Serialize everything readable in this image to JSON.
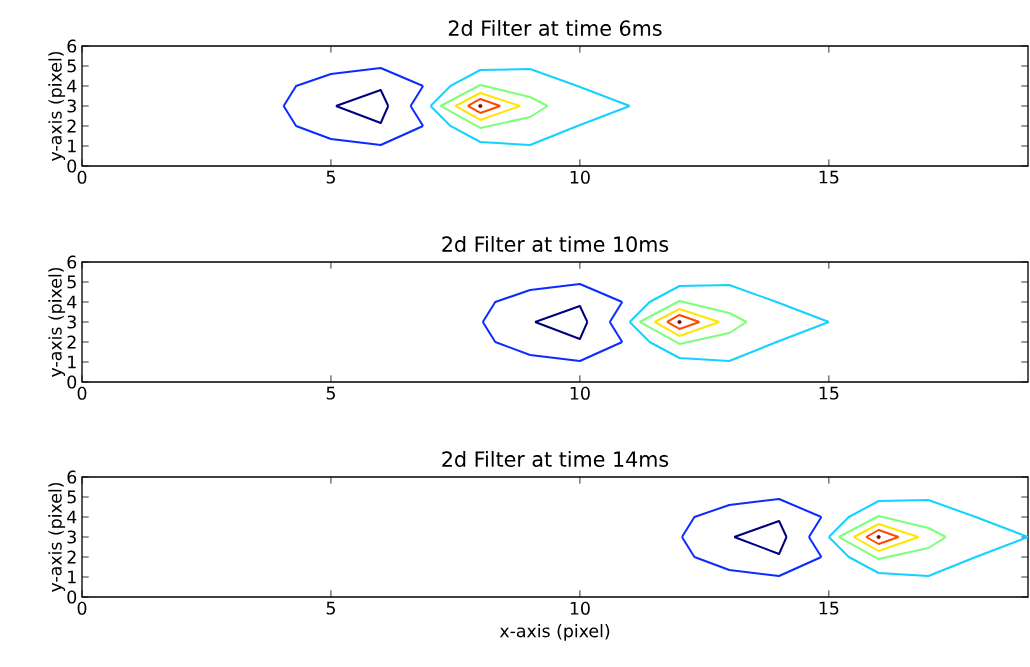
{
  "chart_data": [
    {
      "type": "line",
      "title": "2d Filter at time 6ms",
      "ylabel": "y-axis (pixel)",
      "xlim": [
        0,
        19
      ],
      "ylim": [
        0,
        6
      ],
      "xticks": [
        0,
        5,
        10,
        15
      ],
      "yticks": [
        0,
        1,
        2,
        3,
        4,
        5,
        6
      ],
      "series": [
        {
          "color": "#0c2cff",
          "x": [
            4.05,
            4.3,
            5,
            6,
            6.85
          ],
          "values": [
            3,
            4,
            4.6,
            4.9,
            4
          ]
        },
        {
          "color": "#0c2cff",
          "x": [
            4.05,
            4.3,
            5,
            6,
            6.85
          ],
          "values": [
            3,
            2,
            1.35,
            1.05,
            2
          ]
        },
        {
          "color": "#0c2cff",
          "x": [
            6.6,
            6.85
          ],
          "values": [
            3,
            4
          ]
        },
        {
          "color": "#0c2cff",
          "x": [
            6.6,
            6.85
          ],
          "values": [
            3,
            2
          ]
        },
        {
          "color": "#00007f",
          "x": [
            5.1,
            6,
            6.15
          ],
          "values": [
            3,
            3.8,
            3
          ]
        },
        {
          "color": "#00007f",
          "x": [
            5.1,
            6,
            6.15
          ],
          "values": [
            3,
            2.15,
            3
          ]
        },
        {
          "color": "#14d2ff",
          "x": [
            7,
            7.4,
            8,
            9,
            9.95,
            11
          ],
          "values": [
            3,
            4,
            4.8,
            4.85,
            4,
            3
          ]
        },
        {
          "color": "#14d2ff",
          "x": [
            7,
            7.4,
            8,
            9,
            9.95,
            11
          ],
          "values": [
            3,
            2,
            1.2,
            1.05,
            2,
            3
          ]
        },
        {
          "color": "#7cff79",
          "x": [
            7.2,
            8,
            9,
            9.35
          ],
          "values": [
            3,
            4.05,
            3.45,
            3
          ]
        },
        {
          "color": "#7cff79",
          "x": [
            7.2,
            8,
            9,
            9.35
          ],
          "values": [
            3,
            1.9,
            2.45,
            3
          ]
        },
        {
          "color": "#ffe500",
          "x": [
            7.5,
            8,
            8.8
          ],
          "values": [
            3,
            3.65,
            3
          ]
        },
        {
          "color": "#ffe500",
          "x": [
            7.5,
            8,
            8.8
          ],
          "values": [
            3,
            2.3,
            3
          ]
        },
        {
          "color": "#ff4a00",
          "x": [
            7.75,
            8,
            8.4
          ],
          "values": [
            3,
            3.35,
            3
          ]
        },
        {
          "color": "#ff4a00",
          "x": [
            7.75,
            8,
            8.4
          ],
          "values": [
            3,
            2.65,
            3
          ]
        },
        {
          "type": "scatter",
          "marker": "circle",
          "color": "#7f0000",
          "x": [
            8
          ],
          "values": [
            3
          ]
        }
      ]
    },
    {
      "type": "line",
      "title": "2d Filter at time 10ms",
      "ylabel": "y-axis (pixel)",
      "xlim": [
        0,
        19
      ],
      "ylim": [
        0,
        6
      ],
      "xticks": [
        0,
        5,
        10,
        15
      ],
      "yticks": [
        0,
        1,
        2,
        3,
        4,
        5,
        6
      ],
      "series": [
        {
          "color": "#0c2cff",
          "x": [
            8.05,
            8.3,
            9,
            10,
            10.85
          ],
          "values": [
            3,
            4,
            4.6,
            4.9,
            4
          ]
        },
        {
          "color": "#0c2cff",
          "x": [
            8.05,
            8.3,
            9,
            10,
            10.85
          ],
          "values": [
            3,
            2,
            1.35,
            1.05,
            2
          ]
        },
        {
          "color": "#0c2cff",
          "x": [
            10.6,
            10.85
          ],
          "values": [
            3,
            4
          ]
        },
        {
          "color": "#0c2cff",
          "x": [
            10.6,
            10.85
          ],
          "values": [
            3,
            2
          ]
        },
        {
          "color": "#00007f",
          "x": [
            9.1,
            10,
            10.15
          ],
          "values": [
            3,
            3.8,
            3
          ]
        },
        {
          "color": "#00007f",
          "x": [
            9.1,
            10,
            10.15
          ],
          "values": [
            3,
            2.15,
            3
          ]
        },
        {
          "color": "#14d2ff",
          "x": [
            11,
            11.4,
            12,
            13,
            13.95,
            15
          ],
          "values": [
            3,
            4,
            4.8,
            4.85,
            4,
            3
          ]
        },
        {
          "color": "#14d2ff",
          "x": [
            11,
            11.4,
            12,
            13,
            13.95,
            15
          ],
          "values": [
            3,
            2,
            1.2,
            1.05,
            2,
            3
          ]
        },
        {
          "color": "#7cff79",
          "x": [
            11.2,
            12,
            13,
            13.35
          ],
          "values": [
            3,
            4.05,
            3.45,
            3
          ]
        },
        {
          "color": "#7cff79",
          "x": [
            11.2,
            12,
            13,
            13.35
          ],
          "values": [
            3,
            1.9,
            2.45,
            3
          ]
        },
        {
          "color": "#ffe500",
          "x": [
            11.5,
            12,
            12.8
          ],
          "values": [
            3,
            3.65,
            3
          ]
        },
        {
          "color": "#ffe500",
          "x": [
            11.5,
            12,
            12.8
          ],
          "values": [
            3,
            2.3,
            3
          ]
        },
        {
          "color": "#ff4a00",
          "x": [
            11.75,
            12,
            12.4
          ],
          "values": [
            3,
            3.35,
            3
          ]
        },
        {
          "color": "#ff4a00",
          "x": [
            11.75,
            12,
            12.4
          ],
          "values": [
            3,
            2.65,
            3
          ]
        },
        {
          "type": "scatter",
          "marker": "circle",
          "color": "#7f0000",
          "x": [
            12
          ],
          "values": [
            3
          ]
        }
      ]
    },
    {
      "type": "line",
      "title": "2d Filter at time 14ms",
      "xlabel": "x-axis (pixel)",
      "ylabel": "y-axis (pixel)",
      "xlim": [
        0,
        19
      ],
      "ylim": [
        0,
        6
      ],
      "xticks": [
        0,
        5,
        10,
        15
      ],
      "yticks": [
        0,
        1,
        2,
        3,
        4,
        5,
        6
      ],
      "series": [
        {
          "color": "#0c2cff",
          "x": [
            12.05,
            12.3,
            13,
            14,
            14.85
          ],
          "values": [
            3,
            4,
            4.6,
            4.9,
            4
          ]
        },
        {
          "color": "#0c2cff",
          "x": [
            12.05,
            12.3,
            13,
            14,
            14.85
          ],
          "values": [
            3,
            2,
            1.35,
            1.05,
            2
          ]
        },
        {
          "color": "#0c2cff",
          "x": [
            14.6,
            14.85
          ],
          "values": [
            3,
            4
          ]
        },
        {
          "color": "#0c2cff",
          "x": [
            14.6,
            14.85
          ],
          "values": [
            3,
            2
          ]
        },
        {
          "color": "#00007f",
          "x": [
            13.1,
            14,
            14.15
          ],
          "values": [
            3,
            3.8,
            3
          ]
        },
        {
          "color": "#00007f",
          "x": [
            13.1,
            14,
            14.15
          ],
          "values": [
            3,
            2.15,
            3
          ]
        },
        {
          "color": "#14d2ff",
          "x": [
            15,
            15.4,
            16,
            17,
            17.95,
            19
          ],
          "values": [
            3,
            4,
            4.8,
            4.85,
            4,
            3
          ]
        },
        {
          "color": "#14d2ff",
          "x": [
            15,
            15.4,
            16,
            17,
            17.95,
            19
          ],
          "values": [
            3,
            2,
            1.2,
            1.05,
            2,
            3
          ]
        },
        {
          "color": "#7cff79",
          "x": [
            15.2,
            16,
            17,
            17.35
          ],
          "values": [
            3,
            4.05,
            3.45,
            3
          ]
        },
        {
          "color": "#7cff79",
          "x": [
            15.2,
            16,
            17,
            17.35
          ],
          "values": [
            3,
            1.9,
            2.45,
            3
          ]
        },
        {
          "color": "#ffe500",
          "x": [
            15.5,
            16,
            16.8
          ],
          "values": [
            3,
            3.65,
            3
          ]
        },
        {
          "color": "#ffe500",
          "x": [
            15.5,
            16,
            16.8
          ],
          "values": [
            3,
            2.3,
            3
          ]
        },
        {
          "color": "#ff4a00",
          "x": [
            15.75,
            16,
            16.4
          ],
          "values": [
            3,
            3.35,
            3
          ]
        },
        {
          "color": "#ff4a00",
          "x": [
            15.75,
            16,
            16.4
          ],
          "values": [
            3,
            2.65,
            3
          ]
        },
        {
          "type": "scatter",
          "marker": "circle",
          "color": "#7f0000",
          "x": [
            16
          ],
          "values": [
            3
          ]
        }
      ]
    }
  ]
}
